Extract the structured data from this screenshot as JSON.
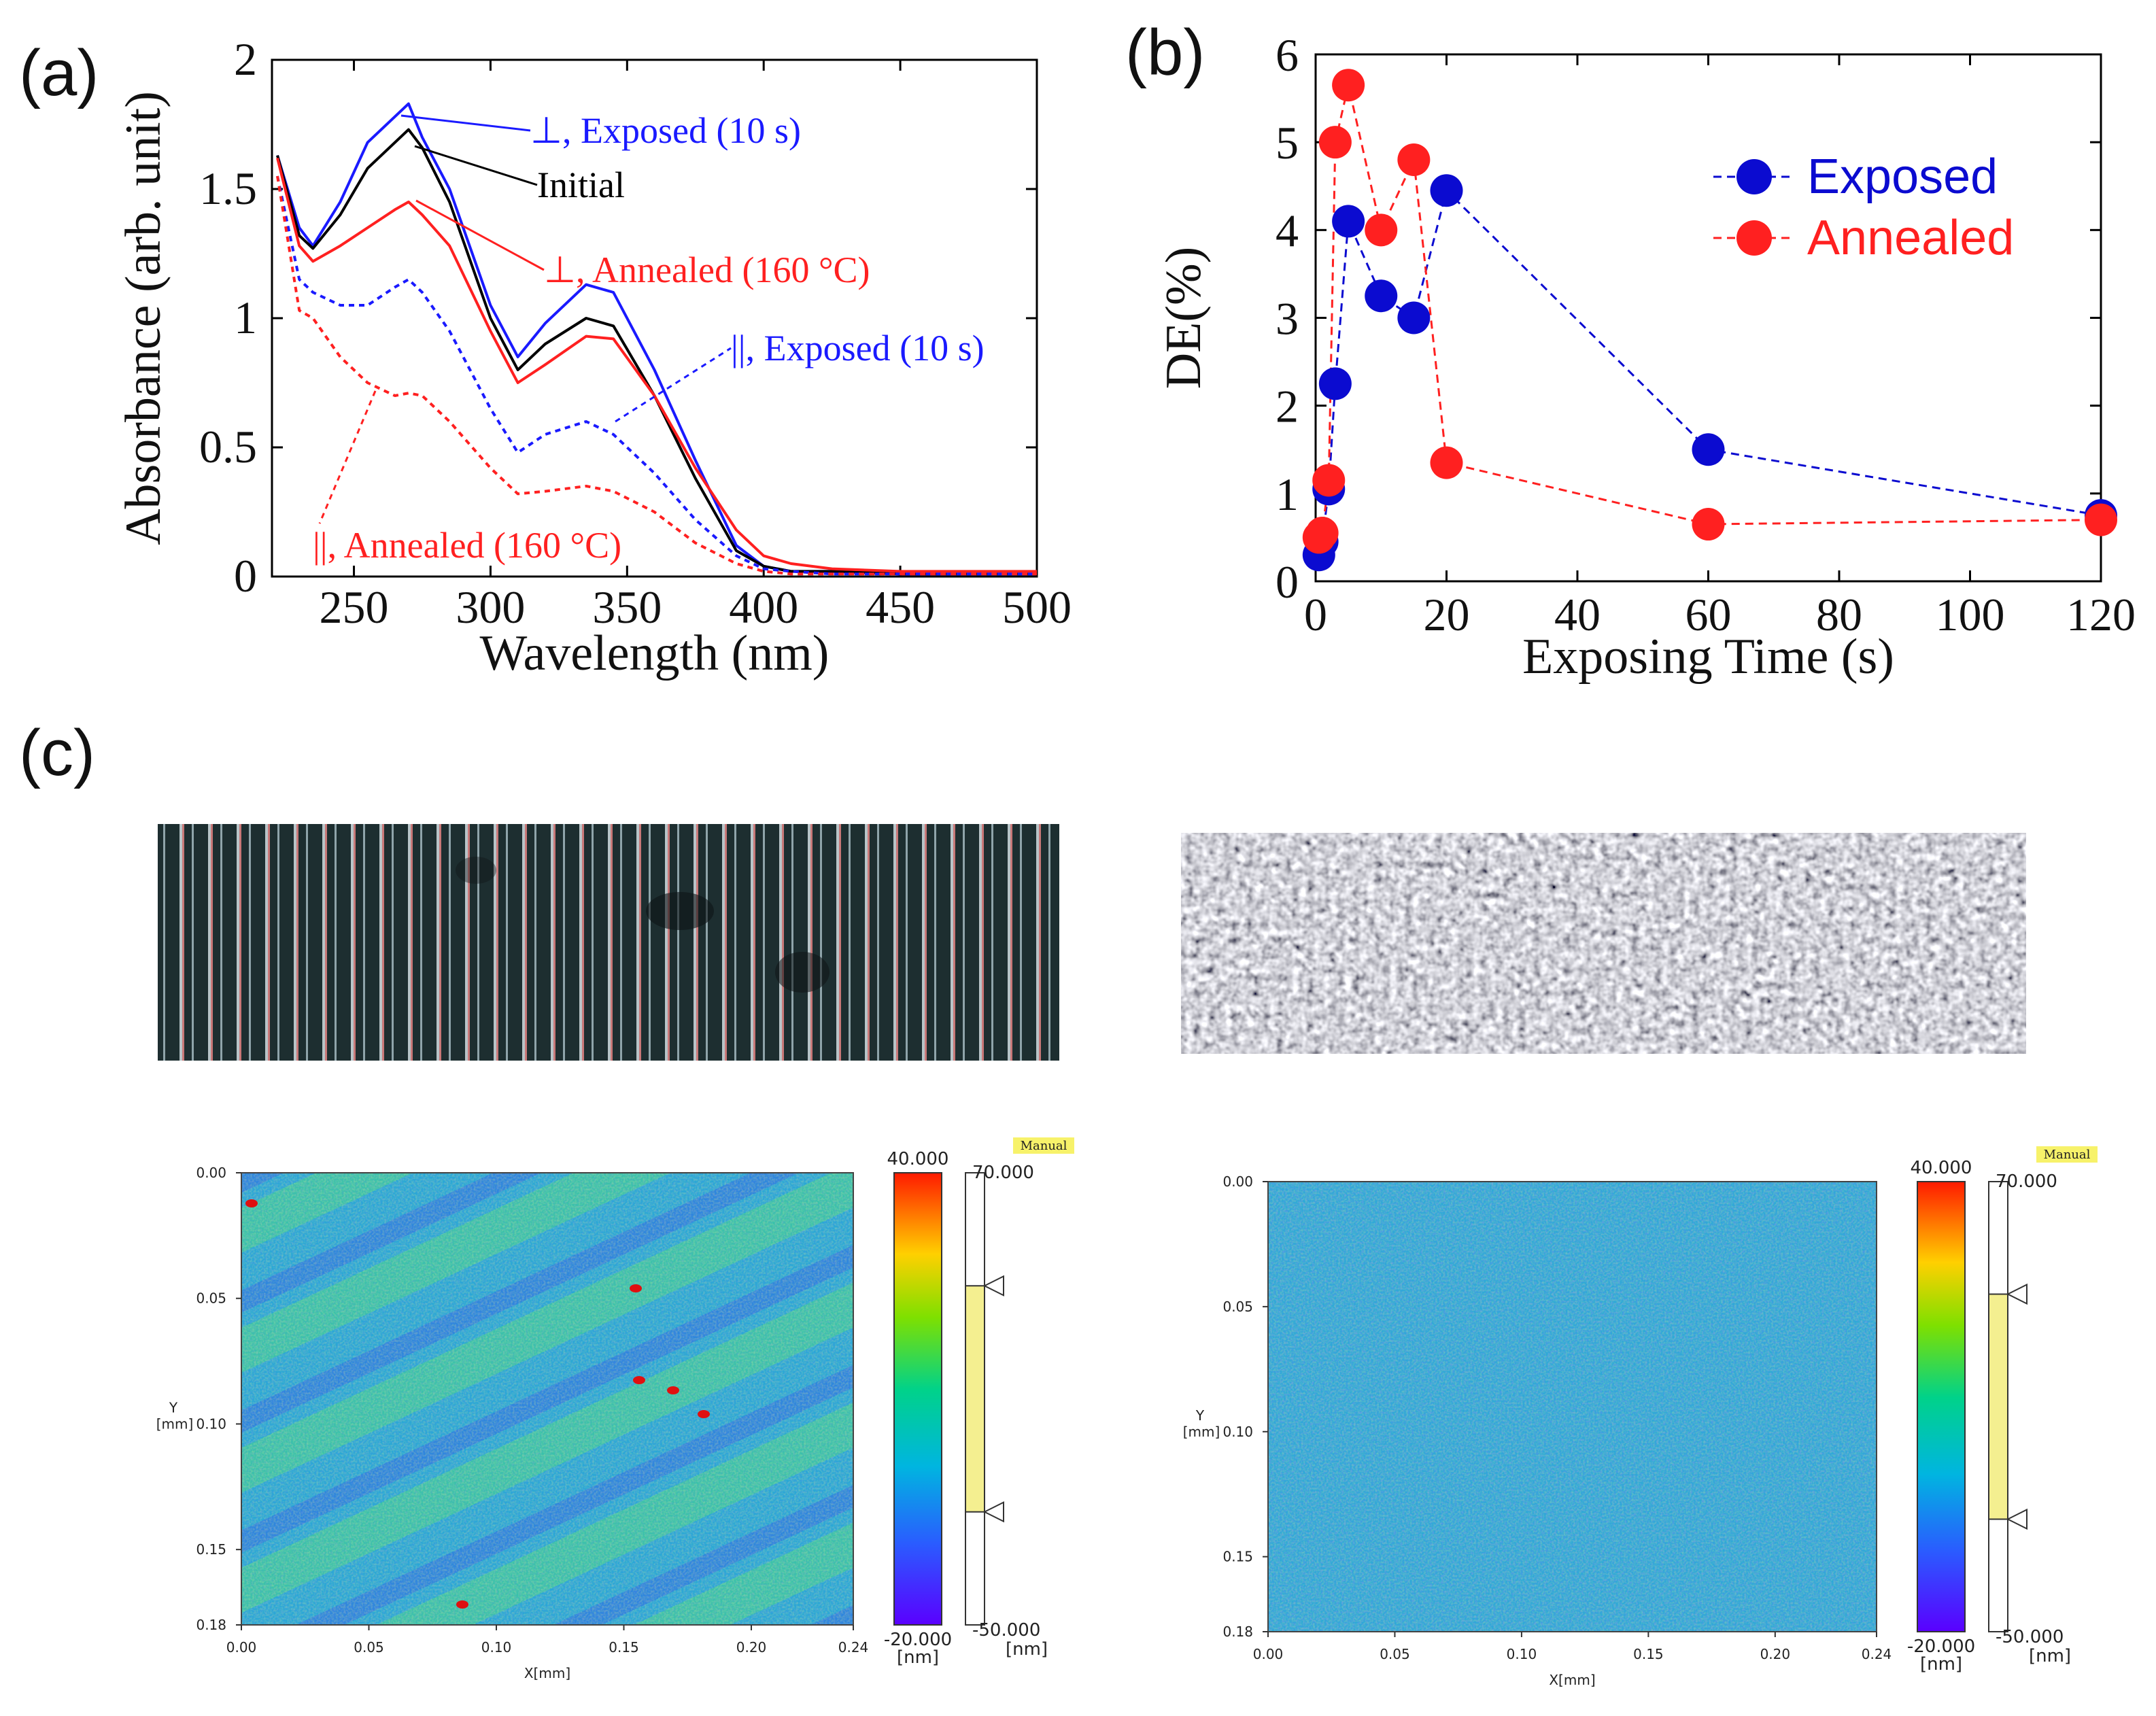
{
  "colors": {
    "initial": "#000000",
    "perp": "#1a1aff",
    "annealed": "#ff2020",
    "exposed_marker": "#0b0bd0"
  },
  "panel_labels": [
    "(a)",
    "(b)",
    "(c)"
  ],
  "chart_data": [
    {
      "type": "line",
      "panel": "(a)",
      "title": "",
      "xlabel": "Wavelength (nm)",
      "ylabel": "Absorbance (arb. unit)",
      "xlim": [
        220,
        500
      ],
      "ylim": [
        0,
        2
      ],
      "x_ticks": [
        "250",
        "300",
        "350",
        "400",
        "450",
        "500"
      ],
      "y_ticks": [
        "0",
        "0.5",
        "1",
        "1.5",
        "2"
      ],
      "x": [
        222,
        230,
        235,
        245,
        255,
        265,
        270,
        275,
        285,
        300,
        310,
        320,
        335,
        345,
        360,
        375,
        390,
        400,
        410,
        425,
        450,
        500
      ],
      "series": [
        {
          "name": "⊥, Exposed (10 s)",
          "style": "solid",
          "color": "#1a1aff",
          "values": [
            1.63,
            1.35,
            1.28,
            1.45,
            1.68,
            1.78,
            1.83,
            1.7,
            1.5,
            1.05,
            0.85,
            0.98,
            1.13,
            1.1,
            0.8,
            0.45,
            0.12,
            0.04,
            0.02,
            0.02,
            0.01,
            0.01
          ]
        },
        {
          "name": "Initial",
          "style": "solid",
          "color": "#000000",
          "values": [
            1.63,
            1.32,
            1.27,
            1.4,
            1.58,
            1.68,
            1.73,
            1.66,
            1.45,
            1.0,
            0.8,
            0.9,
            1.0,
            0.97,
            0.7,
            0.38,
            0.1,
            0.04,
            0.02,
            0.02,
            0.01,
            0.01
          ]
        },
        {
          "name": "⊥, Annealed (160 °C)",
          "style": "solid",
          "color": "#ff2020",
          "values": [
            1.62,
            1.28,
            1.22,
            1.28,
            1.35,
            1.42,
            1.45,
            1.4,
            1.28,
            0.95,
            0.75,
            0.82,
            0.93,
            0.92,
            0.7,
            0.42,
            0.18,
            0.08,
            0.05,
            0.03,
            0.02,
            0.02
          ]
        },
        {
          "name": "||, Exposed (10 s)",
          "style": "dotted",
          "color": "#1a1aff",
          "values": [
            1.55,
            1.15,
            1.1,
            1.05,
            1.05,
            1.12,
            1.15,
            1.1,
            0.95,
            0.65,
            0.48,
            0.55,
            0.6,
            0.55,
            0.4,
            0.22,
            0.08,
            0.03,
            0.02,
            0.01,
            0.01,
            0.01
          ]
        },
        {
          "name": "||, Annealed (160 °C)",
          "style": "dotted",
          "color": "#ff2020",
          "values": [
            1.55,
            1.03,
            1.0,
            0.85,
            0.75,
            0.7,
            0.71,
            0.7,
            0.6,
            0.42,
            0.32,
            0.33,
            0.35,
            0.33,
            0.25,
            0.13,
            0.05,
            0.02,
            0.01,
            0.01,
            0.01,
            0.01
          ]
        }
      ],
      "annotations": [
        {
          "text": "⊥, Exposed (10 s)",
          "color": "#1a1aff",
          "x": 268,
          "y": 1.82
        },
        {
          "text": "Initial",
          "color": "#000000",
          "x": 270,
          "y": 1.72
        },
        {
          "text": "⊥, Annealed (160 °C)",
          "color": "#ff2020",
          "x": 272,
          "y": 1.45
        },
        {
          "text": "||, Exposed (10 s)",
          "color": "#1a1aff",
          "x": 335,
          "y": 0.6
        },
        {
          "text": "||, Annealed (160 °C)",
          "color": "#ff2020",
          "x": 270,
          "y": 0.72
        }
      ]
    },
    {
      "type": "scatter",
      "panel": "(b)",
      "title": "",
      "xlabel": "Exposing Time (s)",
      "ylabel": "DE(%)",
      "xlim": [
        0,
        120
      ],
      "ylim": [
        0,
        6
      ],
      "x_ticks": [
        "0",
        "20",
        "40",
        "60",
        "80",
        "100",
        "120"
      ],
      "y_ticks": [
        "0",
        "1",
        "2",
        "3",
        "4",
        "5",
        "6"
      ],
      "legend_position": "top-right",
      "series": [
        {
          "name": "Exposed",
          "color": "#0b0bd0",
          "line": "dashed",
          "x": [
            0.5,
            1,
            2,
            3,
            5,
            10,
            15,
            20,
            60,
            120
          ],
          "y": [
            0.3,
            0.45,
            1.05,
            2.25,
            4.1,
            3.25,
            3.0,
            4.45,
            1.5,
            0.75
          ]
        },
        {
          "name": "Annealed",
          "color": "#ff2020",
          "line": "dashed",
          "x": [
            0.5,
            1,
            2,
            3,
            5,
            10,
            15,
            20,
            60,
            120
          ],
          "y": [
            0.5,
            0.55,
            1.15,
            5.0,
            5.65,
            4.0,
            4.8,
            1.35,
            0.65,
            0.7
          ]
        }
      ]
    },
    {
      "type": "heatmap",
      "panel": "(c) left map",
      "xlabel": "X[mm]",
      "ylabel": "Y [mm]",
      "x_ticks": [
        "0.00",
        "0.05",
        "0.10",
        "0.15",
        "0.20",
        "0.24"
      ],
      "y_ticks": [
        "0.00",
        "0.05",
        "0.10",
        "0.15",
        "0.18"
      ],
      "colorbar": {
        "max": "40.000",
        "min": "-20.000",
        "unit": "[nm]"
      },
      "range_bar": {
        "max": "70.000",
        "min": "-50.000",
        "unit": "[nm]",
        "mode": "Manual"
      }
    },
    {
      "type": "heatmap",
      "panel": "(c) right map",
      "xlabel": "X[mm]",
      "ylabel": "Y [mm]",
      "x_ticks": [
        "0.00",
        "0.05",
        "0.10",
        "0.15",
        "0.20",
        "0.24"
      ],
      "y_ticks": [
        "0.00",
        "0.05",
        "0.10",
        "0.15",
        "0.18"
      ],
      "colorbar": {
        "max": "40.000",
        "min": "-20.000",
        "unit": "[nm]"
      },
      "range_bar": {
        "max": "70.000",
        "min": "-50.000",
        "unit": "[nm]",
        "mode": "Manual"
      }
    }
  ],
  "map_labels": {
    "y_axis_letter": "Y",
    "y_axis_unit": "[mm]",
    "x_axis": "X[mm]"
  }
}
